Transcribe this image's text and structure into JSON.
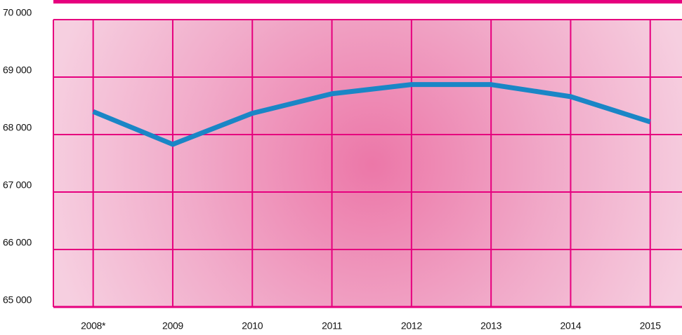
{
  "chart_data": {
    "type": "line",
    "categories": [
      "2008*",
      "2009",
      "2010",
      "2011",
      "2012",
      "2013",
      "2014",
      "2015"
    ],
    "series": [
      {
        "color": "#1a86c6",
        "values": [
          68400,
          67830,
          68370,
          68710,
          68870,
          68870,
          68660,
          68220
        ]
      }
    ],
    "ylim": [
      65000,
      70000
    ],
    "yticks": [
      {
        "value": 65000,
        "label": "65 000"
      },
      {
        "value": 66000,
        "label": "66 000"
      },
      {
        "value": 67000,
        "label": "67 000"
      },
      {
        "value": 68000,
        "label": "68 000"
      },
      {
        "value": 69000,
        "label": "69 000"
      },
      {
        "value": 70000,
        "label": "70 000"
      }
    ],
    "grid": true,
    "grid_color": "#e6007e"
  }
}
